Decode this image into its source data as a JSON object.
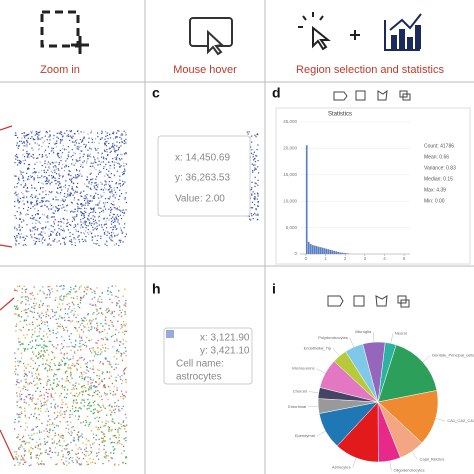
{
  "headers": [
    "Zoom in",
    "Mouse hover",
    "Region selection and statistics"
  ],
  "panels": {
    "c": {
      "label": "c",
      "tooltip": [
        "x: 14,450.69",
        "y: 36,263.53",
        "Value: 2.00"
      ]
    },
    "d": {
      "label": "d",
      "chart_data": {
        "type": "histogram",
        "title": "Statistics",
        "bins": [
          0,
          0.1,
          0.2,
          0.3,
          0.4,
          0.5,
          0.6,
          0.7,
          0.8,
          0.9,
          1.0,
          1.1,
          1.2,
          1.3,
          1.4,
          1.5,
          1.6,
          1.7,
          1.8,
          1.9,
          2.0,
          2.1,
          2.2
        ],
        "values": [
          20600,
          2300,
          1900,
          1700,
          1600,
          1500,
          1400,
          1300,
          1200,
          1100,
          1000,
          900,
          800,
          700,
          600,
          500,
          400,
          300,
          250,
          200,
          150,
          100
        ],
        "color": "#5b7fc0",
        "xlim": [
          -0.3,
          5.3
        ],
        "xticks": [
          0,
          1,
          2,
          3,
          4,
          5
        ],
        "ylim": [
          0,
          25000
        ],
        "yticks": [
          0,
          {
            "value": 5000,
            "label": "5,000"
          },
          {
            "value": 10000,
            "label": "10,000"
          },
          {
            "value": 15000,
            "label": "15,000"
          },
          {
            "value": 20000,
            "label": "20,000"
          },
          {
            "value": 25000,
            "label": "25,000"
          }
        ],
        "grid": true,
        "stats": [
          "Count: 41786",
          "Mean: 0.66",
          "Variance: 0.83",
          "Median: 0.15",
          "Max: 4.39",
          "Min: 0.00"
        ]
      }
    },
    "h": {
      "label": "h",
      "tooltip": [
        "x: 3,121.90",
        "y: 3,421.10",
        "Cell name:",
        "astrocytes"
      ]
    },
    "i": {
      "label": "i",
      "chart_data": {
        "type": "pie",
        "categories": [
          "Neural",
          "Dentate_Principal_cells",
          "CA1_CA2_CA3_Subiculum",
          "Cajal_Retzius",
          "Oligodendrocytes",
          "Astrocytes",
          "Ependymal",
          "Entorhinal",
          "Choroid",
          "Interneurons",
          "Endothelial_Tip",
          "Polydendrocytes",
          "Microglia"
        ],
        "values": [
          3,
          17,
          15,
          7,
          6,
          12,
          10,
          4,
          3,
          8,
          4,
          5,
          6
        ],
        "colors": [
          "#2bb3a0",
          "#2ca05a",
          "#f08a30",
          "#f4a582",
          "#e7298a",
          "#e31a1c",
          "#1f78b4",
          "#999999",
          "#444466",
          "#e377c2",
          "#b8c93a",
          "#7fc8e8",
          "#9467bd"
        ]
      }
    }
  }
}
